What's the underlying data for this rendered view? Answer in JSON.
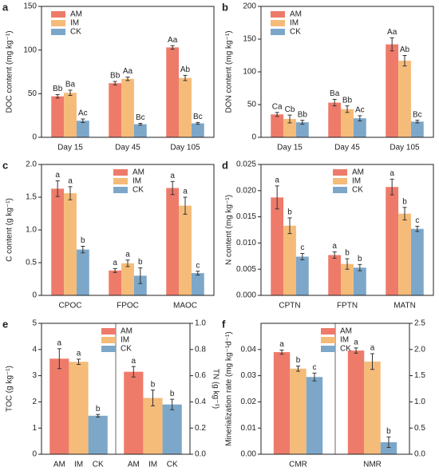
{
  "chart_data": [
    {
      "type": "bar",
      "panel": "a",
      "ylabel": "DOC content (mg kg⁻¹)",
      "categories": [
        "Day 15",
        "Day 45",
        "Day 105"
      ],
      "ylim": [
        0,
        150
      ],
      "yticks": [
        0,
        50,
        100,
        150
      ],
      "legend": "upper left",
      "series": [
        {
          "name": "AM",
          "color": "#ee7b6a",
          "values": [
            47,
            62,
            103
          ],
          "errors": [
            2,
            2,
            2
          ],
          "significance": [
            "Bb",
            "Bb",
            "Aa"
          ]
        },
        {
          "name": "IM",
          "color": "#f5bb79",
          "values": [
            51,
            67,
            68
          ],
          "errors": [
            3,
            2,
            3
          ],
          "significance": [
            "Ba",
            "Aa",
            "Ab"
          ]
        },
        {
          "name": "CK",
          "color": "#7ca7c9",
          "values": [
            19,
            15,
            16
          ],
          "errors": [
            2,
            1,
            1
          ],
          "significance": [
            "Ac",
            "Bc",
            "Bc"
          ]
        }
      ]
    },
    {
      "type": "bar",
      "panel": "b",
      "ylabel": "DON content (mg kg⁻¹)",
      "categories": [
        "Day 15",
        "Day 45",
        "Day 105"
      ],
      "ylim": [
        0,
        200
      ],
      "yticks": [
        0,
        50,
        100,
        150,
        200
      ],
      "legend": "upper left",
      "series": [
        {
          "name": "AM",
          "color": "#ee7b6a",
          "values": [
            35,
            53,
            142
          ],
          "errors": [
            3,
            5,
            10
          ],
          "significance": [
            "Ca",
            "Ba",
            "Aa"
          ]
        },
        {
          "name": "IM",
          "color": "#f5bb79",
          "values": [
            28,
            43,
            117
          ],
          "errors": [
            6,
            5,
            8
          ],
          "significance": [
            "Cb",
            "Bb",
            "Ab"
          ]
        },
        {
          "name": "CK",
          "color": "#7ca7c9",
          "values": [
            23,
            29,
            24
          ],
          "errors": [
            3,
            4,
            2
          ],
          "significance": [
            "Bb",
            "Ac",
            "Bc"
          ]
        }
      ]
    },
    {
      "type": "bar",
      "panel": "c",
      "ylabel": "C content (g kg⁻¹)",
      "categories": [
        "CPOC",
        "FPOC",
        "MAOC"
      ],
      "ylim": [
        0,
        2.0
      ],
      "yticks": [
        0,
        0.5,
        {
          "value": 1.0,
          "label": "1.0"
        },
        1.5,
        {
          "value": 2.0,
          "label": "2.0"
        }
      ],
      "legend": "upper center",
      "series": [
        {
          "name": "AM",
          "color": "#ee7b6a",
          "values": [
            1.63,
            0.38,
            1.64
          ],
          "errors": [
            0.12,
            0.03,
            0.1
          ],
          "significance": [
            "a",
            "a",
            "a"
          ]
        },
        {
          "name": "IM",
          "color": "#f5bb79",
          "values": [
            1.56,
            0.49,
            1.37
          ],
          "errors": [
            0.1,
            0.05,
            0.13
          ],
          "significance": [
            "a",
            "a",
            "a"
          ]
        },
        {
          "name": "CK",
          "color": "#7ca7c9",
          "values": [
            0.7,
            0.3,
            0.34
          ],
          "errors": [
            0.05,
            0.12,
            0.03
          ],
          "significance": [
            "b",
            "b",
            "c"
          ]
        }
      ]
    },
    {
      "type": "bar",
      "panel": "d",
      "ylabel": "N content (mg kg⁻¹)",
      "categories": [
        "CPTN",
        "FPTN",
        "MATN"
      ],
      "ylim": [
        0,
        0.025
      ],
      "yticks": [
        {
          "value": 0,
          "label": "0.000"
        },
        {
          "value": 0.005,
          "label": "0.005"
        },
        {
          "value": 0.01,
          "label": "0.010"
        },
        {
          "value": 0.015,
          "label": "0.015"
        },
        {
          "value": 0.02,
          "label": "0.020"
        },
        {
          "value": 0.025,
          "label": "0.025"
        }
      ],
      "legend": "upper center",
      "series": [
        {
          "name": "AM",
          "color": "#ee7b6a",
          "values": [
            0.0187,
            0.0077,
            0.0207
          ],
          "errors": [
            0.0022,
            0.0006,
            0.0015
          ],
          "significance": [
            "a",
            "a",
            "a"
          ]
        },
        {
          "name": "IM",
          "color": "#f5bb79",
          "values": [
            0.0133,
            0.006,
            0.0156
          ],
          "errors": [
            0.0015,
            0.001,
            0.0012
          ],
          "significance": [
            "b",
            "b",
            "b"
          ]
        },
        {
          "name": "CK",
          "color": "#7ca7c9",
          "values": [
            0.0074,
            0.0053,
            0.0127
          ],
          "errors": [
            0.0006,
            0.0006,
            0.0005
          ],
          "significance": [
            "c",
            "b",
            "c"
          ]
        }
      ]
    },
    {
      "type": "bar",
      "panel": "e",
      "ylabel": "TOC (g kg⁻¹)",
      "y2label": "TN (g kg⁻¹)",
      "categories": [
        null,
        null
      ],
      "category_axes": [
        "y",
        "y2"
      ],
      "series_tick_labels": true,
      "category_divider": true,
      "ylim": [
        0,
        5
      ],
      "yticks": [
        0,
        1,
        2,
        3,
        4,
        5
      ],
      "y2lim": [
        0,
        1.0
      ],
      "y2ticks": [
        {
          "value": 0,
          "label": "0.0"
        },
        0.2,
        0.4,
        0.6,
        0.8,
        {
          "value": 1.0,
          "label": "1.0"
        }
      ],
      "legend": "upper center",
      "series": [
        {
          "name": "AM",
          "color": "#ee7b6a",
          "values": [
            3.65,
            0.63
          ],
          "errors": [
            0.38,
            0.04
          ],
          "significance": [
            "a",
            "a"
          ]
        },
        {
          "name": "IM",
          "color": "#f5bb79",
          "values": [
            3.53,
            0.43
          ],
          "errors": [
            0.1,
            0.06
          ],
          "significance": [
            "a",
            "b"
          ]
        },
        {
          "name": "CK",
          "color": "#7ca7c9",
          "values": [
            1.47,
            0.38
          ],
          "errors": [
            0.05,
            0.04
          ],
          "significance": [
            "b",
            "b"
          ]
        }
      ]
    },
    {
      "type": "bar",
      "panel": "f",
      "ylabel": "Minerialization rate (mg kg⁻¹d⁻¹)",
      "categories": [
        "CMR",
        "NMR"
      ],
      "category_axes": [
        "y",
        "y2"
      ],
      "category_divider": true,
      "ylim": [
        0,
        0.05
      ],
      "yticks": [
        {
          "value": 0,
          "label": "0.00"
        },
        0.01,
        0.02,
        0.03,
        0.04
      ],
      "y2lim": [
        0,
        2.5
      ],
      "y2ticks": [
        {
          "value": 0,
          "label": "0.0"
        },
        0.5,
        {
          "value": 1.0,
          "label": "1.0"
        },
        1.5,
        {
          "value": 2.0,
          "label": "2.0"
        },
        2.5
      ],
      "legend": "upper center",
      "series": [
        {
          "name": "AM",
          "color": "#ee7b6a",
          "values": [
            0.039,
            1.98
          ],
          "errors": [
            0.0008,
            0.05
          ],
          "significance": [
            "a",
            "a"
          ]
        },
        {
          "name": "IM",
          "color": "#f5bb79",
          "values": [
            0.0327,
            1.77
          ],
          "errors": [
            0.001,
            0.15
          ],
          "significance": [
            "b",
            "a"
          ]
        },
        {
          "name": "CK",
          "color": "#7ca7c9",
          "values": [
            0.0295,
            0.23
          ],
          "errors": [
            0.0015,
            0.1
          ],
          "significance": [
            "c",
            "b"
          ]
        }
      ]
    }
  ]
}
